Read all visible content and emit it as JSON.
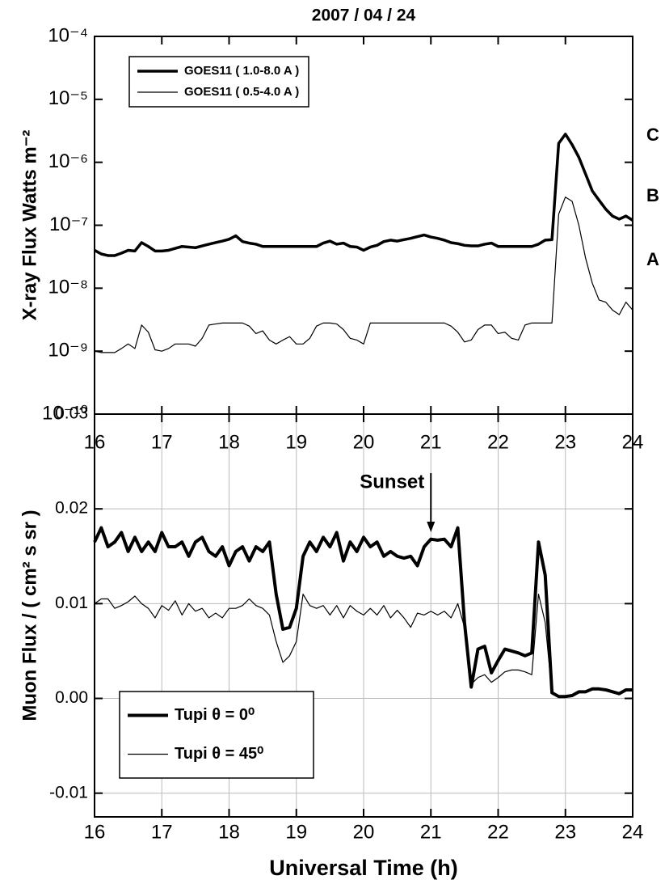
{
  "chart_data": [
    {
      "type": "line",
      "title": "2007 / 04 / 24",
      "ylabel": "X-ray Flux  Watts m⁻²",
      "yscale": "log",
      "grid": false,
      "legend": "upper left",
      "xlim": [
        16,
        24
      ],
      "xticks": [
        16,
        17,
        18,
        19,
        20,
        21,
        22,
        23,
        24
      ],
      "ylim": [
        1e-10,
        0.0001
      ],
      "yticks": [
        {
          "value": 1e-10,
          "label": "10⁻¹⁰"
        },
        {
          "value": 1e-09,
          "label": "10⁻⁹"
        },
        {
          "value": 1e-08,
          "label": "10⁻⁸"
        },
        {
          "value": 1e-07,
          "label": "10⁻⁷"
        },
        {
          "value": 1e-06,
          "label": "10⁻⁶"
        },
        {
          "value": 1e-05,
          "label": "10⁻⁵"
        },
        {
          "value": 0.0001,
          "label": "10⁻⁴"
        }
      ],
      "annotations": [
        {
          "text": "C"
        },
        {
          "text": "B"
        },
        {
          "text": "A"
        }
      ],
      "x": [
        16.0,
        16.1,
        16.2,
        16.3,
        16.4,
        16.5,
        16.6,
        16.7,
        16.8,
        16.9,
        17.0,
        17.1,
        17.2,
        17.3,
        17.4,
        17.5,
        17.6,
        17.7,
        17.8,
        17.9,
        18.0,
        18.1,
        18.2,
        18.3,
        18.4,
        18.5,
        18.6,
        18.7,
        18.8,
        18.9,
        19.0,
        19.1,
        19.2,
        19.3,
        19.4,
        19.5,
        19.6,
        19.7,
        19.8,
        19.9,
        20.0,
        20.1,
        20.2,
        20.3,
        20.4,
        20.5,
        20.6,
        20.7,
        20.8,
        20.9,
        21.0,
        21.1,
        21.2,
        21.3,
        21.4,
        21.5,
        21.6,
        21.7,
        21.8,
        21.9,
        22.0,
        22.1,
        22.2,
        22.3,
        22.4,
        22.5,
        22.6,
        22.7,
        22.8,
        22.9,
        23.0,
        23.1,
        23.2,
        23.3,
        23.4,
        23.5,
        23.6,
        23.7,
        23.8,
        23.9,
        24.0
      ],
      "series": [
        {
          "name": "GOES11 ( 1.0-8.0 A )",
          "color": "#000000",
          "width": 3.5,
          "values": [
            4e-08,
            3.5e-08,
            3.3e-08,
            3.3e-08,
            3.6e-08,
            4e-08,
            3.9e-08,
            5.3e-08,
            4.6e-08,
            3.9e-08,
            3.9e-08,
            4e-08,
            4.3e-08,
            4.6e-08,
            4.5e-08,
            4.4e-08,
            4.7e-08,
            5e-08,
            5.3e-08,
            5.6e-08,
            6e-08,
            6.8e-08,
            5.5e-08,
            5.2e-08,
            5e-08,
            4.6e-08,
            4.6e-08,
            4.6e-08,
            4.6e-08,
            4.6e-08,
            4.6e-08,
            4.6e-08,
            4.6e-08,
            4.6e-08,
            5.2e-08,
            5.6e-08,
            5e-08,
            5.2e-08,
            4.6e-08,
            4.5e-08,
            4e-08,
            4.5e-08,
            4.8e-08,
            5.5e-08,
            5.8e-08,
            5.6e-08,
            5.9e-08,
            6.2e-08,
            6.6e-08,
            7e-08,
            6.5e-08,
            6.2e-08,
            5.8e-08,
            5.3e-08,
            5.1e-08,
            4.8e-08,
            4.7e-08,
            4.7e-08,
            5e-08,
            5.2e-08,
            4.6e-08,
            4.6e-08,
            4.6e-08,
            4.6e-08,
            4.6e-08,
            4.6e-08,
            5e-08,
            5.8e-08,
            5.9e-08,
            2e-06,
            2.8e-06,
            1.9e-06,
            1.2e-06,
            6.5e-07,
            3.5e-07,
            2.5e-07,
            1.8e-07,
            1.4e-07,
            1.25e-07,
            1.4e-07,
            1.2e-07
          ]
        },
        {
          "name": "GOES11 ( 0.5-4.0 A )",
          "color": "#000000",
          "width": 1.2,
          "values": [
            1e-09,
            9.5e-10,
            9.5e-10,
            9.5e-10,
            1.1e-09,
            1.3e-09,
            1.1e-09,
            2.6e-09,
            2e-09,
            1.05e-09,
            1e-09,
            1.1e-09,
            1.3e-09,
            1.3e-09,
            1.3e-09,
            1.2e-09,
            1.6e-09,
            2.6e-09,
            2.7e-09,
            2.8e-09,
            2.8e-09,
            2.8e-09,
            2.8e-09,
            2.5e-09,
            1.9e-09,
            2.1e-09,
            1.5e-09,
            1.3e-09,
            1.5e-09,
            1.7e-09,
            1.3e-09,
            1.3e-09,
            1.6e-09,
            2.5e-09,
            2.8e-09,
            2.8e-09,
            2.7e-09,
            2.2e-09,
            1.6e-09,
            1.5e-09,
            1.3e-09,
            2.8e-09,
            2.8e-09,
            2.8e-09,
            2.8e-09,
            2.8e-09,
            2.8e-09,
            2.8e-09,
            2.8e-09,
            2.8e-09,
            2.8e-09,
            2.8e-09,
            2.8e-09,
            2.5e-09,
            2e-09,
            1.4e-09,
            1.5e-09,
            2.2e-09,
            2.6e-09,
            2.6e-09,
            1.9e-09,
            2e-09,
            1.6e-09,
            1.5e-09,
            2.6e-09,
            2.8e-09,
            2.8e-09,
            2.8e-09,
            2.8e-09,
            1.5e-07,
            2.8e-07,
            2.4e-07,
            1e-07,
            3e-08,
            1.2e-08,
            6.5e-09,
            6e-09,
            4.5e-09,
            3.8e-09,
            6e-09,
            4.5e-09
          ]
        }
      ]
    },
    {
      "type": "line",
      "ylabel": "Muon Flux / ( cm² s sr )",
      "xlabel": "Universal Time  (h)",
      "grid": true,
      "legend": "lower left",
      "xlim": [
        16,
        24
      ],
      "xticks": [
        16,
        17,
        18,
        19,
        20,
        21,
        22,
        23,
        24
      ],
      "ylim": [
        -0.0125,
        0.03
      ],
      "yticks": [
        -0.01,
        {
          "value": 0,
          "label": "0.00"
        },
        0.01,
        0.02,
        0.03
      ],
      "annotations": [
        {
          "text": "Sunset",
          "x": 21
        }
      ],
      "x": [
        16.0,
        16.1,
        16.2,
        16.3,
        16.4,
        16.5,
        16.6,
        16.7,
        16.8,
        16.9,
        17.0,
        17.1,
        17.2,
        17.3,
        17.4,
        17.5,
        17.6,
        17.7,
        17.8,
        17.9,
        18.0,
        18.1,
        18.2,
        18.3,
        18.4,
        18.5,
        18.6,
        18.7,
        18.8,
        18.9,
        19.0,
        19.1,
        19.2,
        19.3,
        19.4,
        19.5,
        19.6,
        19.7,
        19.8,
        19.9,
        20.0,
        20.1,
        20.2,
        20.3,
        20.4,
        20.5,
        20.6,
        20.7,
        20.8,
        20.9,
        21.0,
        21.1,
        21.2,
        21.3,
        21.4,
        21.5,
        21.6,
        21.7,
        21.8,
        21.9,
        22.0,
        22.1,
        22.2,
        22.3,
        22.4,
        22.5,
        22.6,
        22.7,
        22.8,
        22.9,
        23.0,
        23.1,
        23.2,
        23.3,
        23.4,
        23.5,
        23.6,
        23.7,
        23.8,
        23.9,
        24.0
      ],
      "series": [
        {
          "name": "Tupi θ = 0⁰",
          "color": "#000000",
          "width": 4,
          "values": [
            0.0165,
            0.018,
            0.016,
            0.0165,
            0.0175,
            0.0155,
            0.017,
            0.0155,
            0.0165,
            0.0155,
            0.0175,
            0.016,
            0.016,
            0.0165,
            0.015,
            0.0165,
            0.017,
            0.0155,
            0.015,
            0.016,
            0.014,
            0.0155,
            0.016,
            0.0145,
            0.016,
            0.0155,
            0.0165,
            0.011,
            0.0073,
            0.0075,
            0.0095,
            0.015,
            0.0165,
            0.0155,
            0.017,
            0.016,
            0.0175,
            0.0145,
            0.0165,
            0.0155,
            0.017,
            0.016,
            0.0165,
            0.015,
            0.0155,
            0.015,
            0.0148,
            0.015,
            0.014,
            0.016,
            0.0168,
            0.0167,
            0.0168,
            0.016,
            0.018,
            0.008,
            0.0012,
            0.0052,
            0.0055,
            0.0027,
            0.004,
            0.0052,
            0.005,
            0.0048,
            0.0045,
            0.0048,
            0.0165,
            0.013,
            0.0006,
            0.0002,
            0.0002,
            0.0003,
            0.0007,
            0.0007,
            0.001,
            0.001,
            0.0009,
            0.0007,
            0.0005,
            0.0009,
            0.0009
          ]
        },
        {
          "name": "Tupi θ = 45⁰",
          "color": "#000000",
          "width": 1.2,
          "values": [
            0.01,
            0.0105,
            0.0105,
            0.0095,
            0.0098,
            0.0102,
            0.0108,
            0.01,
            0.0095,
            0.0085,
            0.0098,
            0.0093,
            0.0103,
            0.0088,
            0.01,
            0.0092,
            0.0095,
            0.0085,
            0.009,
            0.0085,
            0.0095,
            0.0095,
            0.0098,
            0.0105,
            0.0098,
            0.0095,
            0.0088,
            0.006,
            0.0038,
            0.0045,
            0.006,
            0.011,
            0.0098,
            0.0095,
            0.0098,
            0.0088,
            0.0098,
            0.0085,
            0.0098,
            0.0092,
            0.0088,
            0.0095,
            0.0088,
            0.0098,
            0.0085,
            0.0093,
            0.0085,
            0.0075,
            0.009,
            0.0088,
            0.0092,
            0.0088,
            0.0092,
            0.0085,
            0.01,
            0.0075,
            0.0015,
            0.0022,
            0.0025,
            0.0017,
            0.0022,
            0.0028,
            0.003,
            0.003,
            0.0028,
            0.0025,
            0.011,
            0.008,
            0.0005,
            0.0002,
            0.0002,
            0.0003,
            0.0006,
            0.0007,
            0.001,
            0.001,
            0.0009,
            0.0007,
            0.0005,
            0.0008,
            0.0009
          ]
        }
      ]
    }
  ]
}
